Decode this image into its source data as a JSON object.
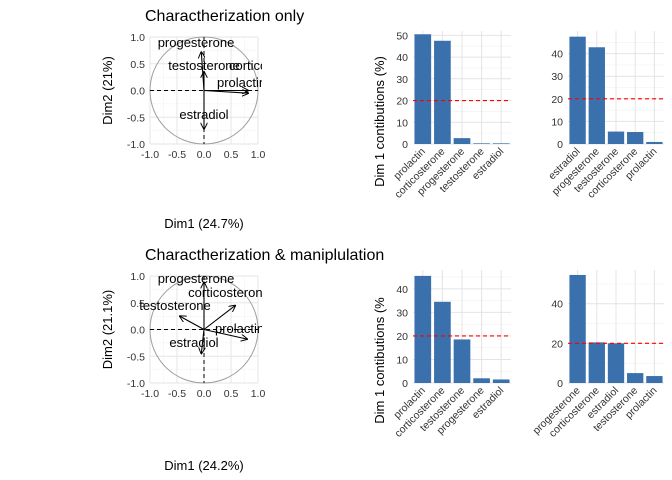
{
  "chart_data": [
    {
      "type": "scatter",
      "variant": "pca-variable-correlation-circle",
      "title": "Charactherization only",
      "xlabel": "Dim1 (24.7%)",
      "ylabel": "Dim2 (21%)",
      "xlim": [
        -1.0,
        1.0
      ],
      "ylim": [
        -1.0,
        1.0
      ],
      "xticks": [
        "-1.0",
        "-0.5",
        "0.0",
        "0.5",
        "1.0"
      ],
      "yticks": [
        "-1.0",
        "-0.5",
        "0.0",
        "0.5",
        "1.0"
      ],
      "grid": true,
      "unit_circle": true,
      "vectors": [
        {
          "name": "progesterone",
          "x": -0.05,
          "y": 0.72
        },
        {
          "name": "testosterone",
          "x": 0.0,
          "y": 0.35
        },
        {
          "name": "corticosterone",
          "x": 0.82,
          "y": 0.0
        },
        {
          "name": "prolactin",
          "x": 0.82,
          "y": -0.05
        },
        {
          "name": "estradiol",
          "x": 0.0,
          "y": -0.72
        }
      ]
    },
    {
      "type": "bar",
      "ylabel": "Dim 1 contibutions (%)",
      "categories": [
        "prolactin",
        "corticosterone",
        "progesterone",
        "testosterone",
        "estradiol"
      ],
      "values": [
        50.5,
        47.5,
        2.7,
        0.3,
        0.3
      ],
      "ylim": [
        0,
        52
      ],
      "yticks": [
        "0",
        "10",
        "20",
        "30",
        "40",
        "50"
      ],
      "reference_line": 20,
      "bar_color": "#3a70ab",
      "reference_color": "#ff0000"
    },
    {
      "type": "bar",
      "categories": [
        "estradiol",
        "progesterone",
        "testosterone",
        "corticosterone",
        "prolactin"
      ],
      "values": [
        47.5,
        42.8,
        5.5,
        5.3,
        0.9
      ],
      "ylim": [
        0,
        50
      ],
      "yticks": [
        "0",
        "10",
        "20",
        "30",
        "40"
      ],
      "reference_line": 20,
      "bar_color": "#3a70ab",
      "reference_color": "#ff0000"
    },
    {
      "type": "scatter",
      "variant": "pca-variable-correlation-circle",
      "title": "Charactherization & maniplulation",
      "xlabel": "Dim1 (24.2%)",
      "ylabel": "Dim2 (21.1%)",
      "xlim": [
        -1.0,
        1.0
      ],
      "ylim": [
        -1.0,
        1.0
      ],
      "xticks": [
        "-1.0",
        "-0.5",
        "0.0",
        "0.5",
        "1.0"
      ],
      "yticks": [
        "-1.0",
        "-0.5",
        "0.0",
        "0.5",
        "1.0"
      ],
      "grid": true,
      "unit_circle": true,
      "vectors": [
        {
          "name": "progesterone",
          "x": 0.0,
          "y": 0.88
        },
        {
          "name": "corticosterone",
          "x": 0.58,
          "y": 0.45
        },
        {
          "name": "testosterone",
          "x": -0.45,
          "y": 0.25
        },
        {
          "name": "prolactin",
          "x": 0.8,
          "y": -0.18
        },
        {
          "name": "estradiol",
          "x": -0.05,
          "y": -0.45
        }
      ]
    },
    {
      "type": "bar",
      "ylabel": "Dim 1 contibutions (%",
      "categories": [
        "prolactin",
        "corticosterone",
        "testosterone",
        "progesterone",
        "estradiol"
      ],
      "values": [
        45.5,
        34.5,
        18.5,
        2.0,
        1.5
      ],
      "ylim": [
        0,
        48
      ],
      "yticks": [
        "0",
        "10",
        "20",
        "30",
        "40"
      ],
      "reference_line": 20,
      "bar_color": "#3a70ab",
      "reference_color": "#ff0000"
    },
    {
      "type": "bar",
      "categories": [
        "progesterone",
        "corticosterone",
        "estradiol",
        "testosterone",
        "prolactin"
      ],
      "values": [
        54.5,
        20.5,
        20.0,
        5.0,
        3.5
      ],
      "ylim": [
        0,
        57
      ],
      "yticks": [
        "0",
        "20",
        "40"
      ],
      "reference_line": 20,
      "bar_color": "#3a70ab",
      "reference_color": "#ff0000"
    }
  ]
}
